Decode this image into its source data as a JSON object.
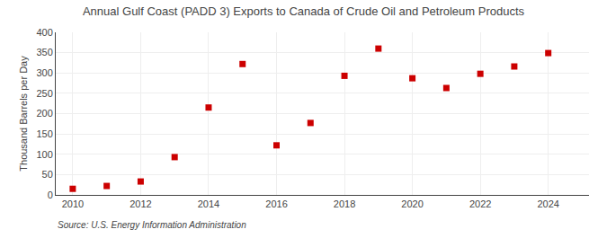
{
  "chart_data": {
    "type": "scatter",
    "title": "Annual Gulf Coast (PADD 3) Exports to Canada of Crude Oil and Petroleum Products",
    "ylabel": "Thousand Barrels per Day",
    "annotations": [
      "Source: U.S. Energy Information Administration"
    ],
    "x": [
      2010,
      2011,
      2012,
      2013,
      2014,
      2015,
      2016,
      2017,
      2018,
      2019,
      2020,
      2021,
      2022,
      2023,
      2024
    ],
    "values": [
      15,
      22,
      33,
      93,
      215,
      322,
      122,
      177,
      293,
      360,
      287,
      263,
      298,
      316,
      349
    ],
    "color": "#CC0000",
    "marker": "square",
    "grid": true,
    "xlim": [
      2009.5,
      2025.2
    ],
    "xticks": [
      2010,
      2012,
      2014,
      2016,
      2018,
      2020,
      2022,
      2024
    ],
    "ylim": [
      0,
      400
    ],
    "yticks": [
      0,
      50,
      100,
      150,
      200,
      250,
      300,
      350,
      400
    ]
  }
}
